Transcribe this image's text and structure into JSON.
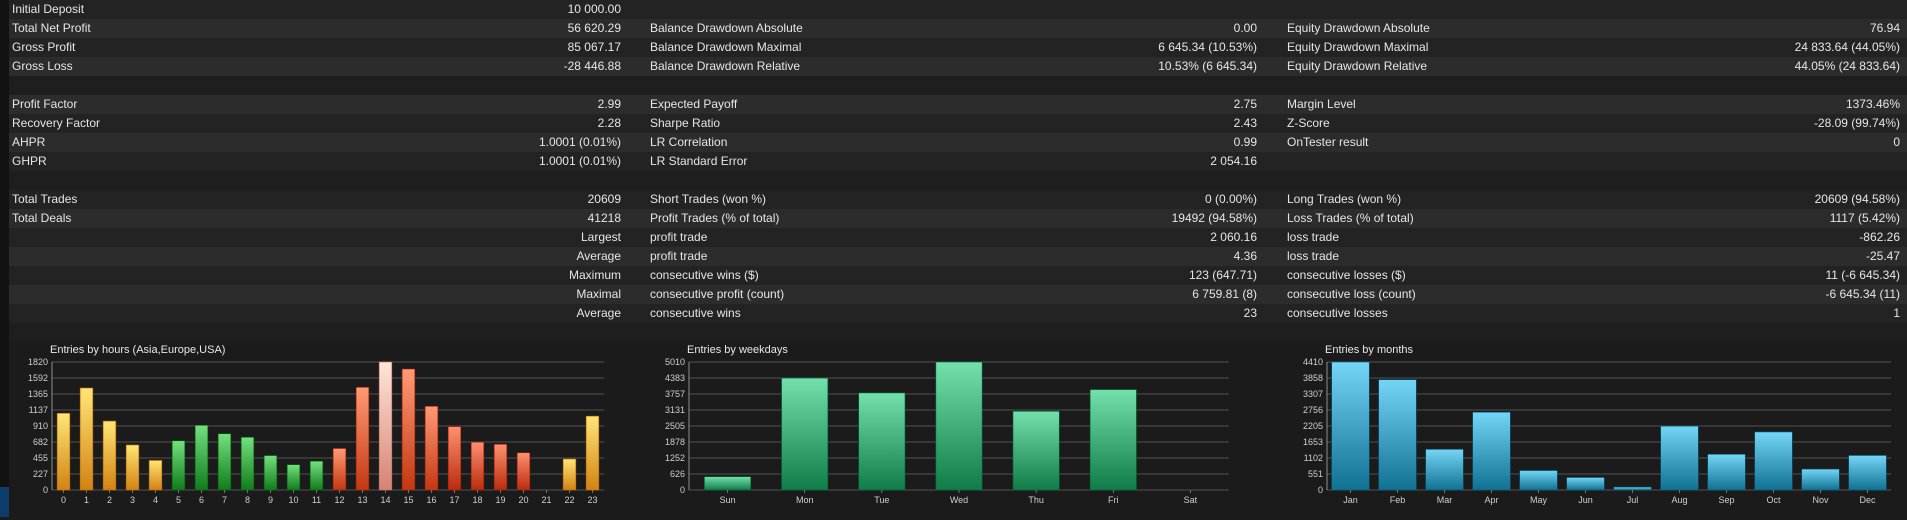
{
  "summary_rows": [
    {
      "l1": "Initial Deposit",
      "v1": "10 000.00",
      "l2": "",
      "v2": "",
      "l3": "",
      "v3": ""
    },
    {
      "l1": "Total Net Profit",
      "v1": "56 620.29",
      "l2": "Balance Drawdown Absolute",
      "v2": "0.00",
      "l3": "Equity Drawdown Absolute",
      "v3": "76.94"
    },
    {
      "l1": "Gross Profit",
      "v1": "85 067.17",
      "l2": "Balance Drawdown Maximal",
      "v2": "6 645.34 (10.53%)",
      "l3": "Equity Drawdown Maximal",
      "v3": "24 833.64 (44.05%)"
    },
    {
      "l1": "Gross Loss",
      "v1": "-28 446.88",
      "l2": "Balance Drawdown Relative",
      "v2": "10.53% (6 645.34)",
      "l3": "Equity Drawdown Relative",
      "v3": "44.05% (24 833.64)"
    },
    {
      "blank": true
    },
    {
      "l1": "Profit Factor",
      "v1": "2.99",
      "l2": "Expected Payoff",
      "v2": "2.75",
      "l3": "Margin Level",
      "v3": "1373.46%"
    },
    {
      "l1": "Recovery Factor",
      "v1": "2.28",
      "l2": "Sharpe Ratio",
      "v2": "2.43",
      "l3": "Z-Score",
      "v3": "-28.09 (99.74%)"
    },
    {
      "l1": "AHPR",
      "v1": "1.0001 (0.01%)",
      "l2": "LR Correlation",
      "v2": "0.99",
      "l3": "OnTester result",
      "v3": "0"
    },
    {
      "l1": "GHPR",
      "v1": "1.0001 (0.01%)",
      "l2": "LR Standard Error",
      "v2": "2 054.16",
      "l3": "",
      "v3": ""
    },
    {
      "blank": true
    },
    {
      "l1": "Total Trades",
      "v1": "20609",
      "l2": "Short Trades (won %)",
      "v2": "0 (0.00%)",
      "l3": "Long Trades (won %)",
      "v3": "20609 (94.58%)"
    },
    {
      "l1": "Total Deals",
      "v1": "41218",
      "l2": "Profit Trades (% of total)",
      "v2": "19492 (94.58%)",
      "l3": "Loss Trades (% of total)",
      "v3": "1117 (5.42%)"
    },
    {
      "r1": "Largest",
      "l2": "profit trade",
      "v2": "2 060.16",
      "l3": "loss trade",
      "v3": "-862.26"
    },
    {
      "r1": "Average",
      "l2": "profit trade",
      "v2": "4.36",
      "l3": "loss trade",
      "v3": "-25.47"
    },
    {
      "r1": "Maximum",
      "l2": "consecutive wins ($)",
      "v2": "123 (647.71)",
      "l3": "consecutive losses ($)",
      "v3": "11 (-6 645.34)"
    },
    {
      "r1": "Maximal",
      "l2": "consecutive profit (count)",
      "v2": "6 759.81 (8)",
      "l3": "consecutive loss (count)",
      "v3": "-6 645.34 (11)"
    },
    {
      "r1": "Average",
      "l2": "consecutive wins",
      "v2": "23",
      "l3": "consecutive losses",
      "v3": "1"
    },
    {
      "blank": true
    }
  ],
  "chart_data": [
    {
      "type": "bar",
      "title": "Entries by hours (Asia,Europe,USA)",
      "categories": [
        "0",
        "1",
        "2",
        "3",
        "4",
        "5",
        "6",
        "7",
        "8",
        "9",
        "10",
        "11",
        "12",
        "13",
        "14",
        "15",
        "16",
        "17",
        "18",
        "19",
        "20",
        "21",
        "22",
        "23"
      ],
      "values": [
        1090,
        1450,
        980,
        640,
        420,
        700,
        920,
        800,
        750,
        490,
        360,
        410,
        590,
        1460,
        1820,
        1720,
        1190,
        900,
        680,
        650,
        530,
        0,
        440,
        1050
      ],
      "colors": [
        "#f0a030",
        "#f0a030",
        "#f0a030",
        "#f0a030",
        "#f0a030",
        "#2e9a3a",
        "#2e9a3a",
        "#2e9a3a",
        "#2e9a3a",
        "#2e9a3a",
        "#2e9a3a",
        "#2e9a3a",
        "#e25530",
        "#e25530",
        "#f4a092",
        "#e25530",
        "#e25530",
        "#d84a2c",
        "#d84a2c",
        "#d84a2c",
        "#d84a2c",
        "#d84a2c",
        "#f0a030",
        "#f0a030"
      ],
      "yticks": [
        "0",
        "227",
        "455",
        "682",
        "910",
        "1137",
        "1365",
        "1592",
        "1820"
      ],
      "ylim": [
        0,
        1820
      ]
    },
    {
      "type": "bar",
      "title": "Entries by weekdays",
      "categories": [
        "Sun",
        "Mon",
        "Tue",
        "Wed",
        "Thu",
        "Fri",
        "Sat"
      ],
      "values": [
        520,
        4380,
        3800,
        5010,
        3080,
        3930,
        0
      ],
      "color": "#2e9a66",
      "yticks": [
        "0",
        "626",
        "1252",
        "1878",
        "2505",
        "3131",
        "3757",
        "4383",
        "5010"
      ],
      "ylim": [
        0,
        5010
      ]
    },
    {
      "type": "bar",
      "title": "Entries by months",
      "categories": [
        "Jan",
        "Feb",
        "Mar",
        "Apr",
        "May",
        "Jun",
        "Jul",
        "Aug",
        "Sep",
        "Oct",
        "Nov",
        "Dec"
      ],
      "values": [
        4410,
        3800,
        1400,
        2680,
        670,
        430,
        100,
        2200,
        1230,
        2000,
        720,
        1190
      ],
      "color": "#2f8fb0",
      "yticks": [
        "0",
        "551",
        "1102",
        "1653",
        "2205",
        "2756",
        "3307",
        "3858",
        "4410"
      ],
      "ylim": [
        0,
        4410
      ]
    }
  ]
}
